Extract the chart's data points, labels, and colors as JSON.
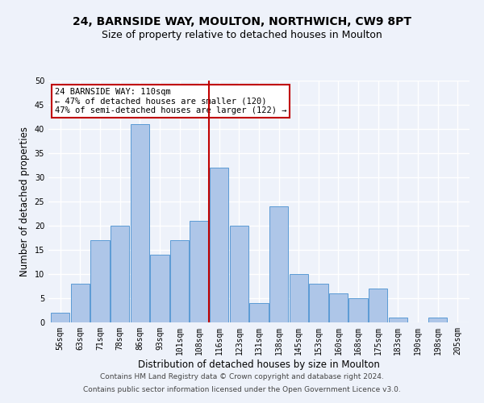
{
  "title_line1": "24, BARNSIDE WAY, MOULTON, NORTHWICH, CW9 8PT",
  "title_line2": "Size of property relative to detached houses in Moulton",
  "xlabel": "Distribution of detached houses by size in Moulton",
  "ylabel": "Number of detached properties",
  "footer_line1": "Contains HM Land Registry data © Crown copyright and database right 2024.",
  "footer_line2": "Contains public sector information licensed under the Open Government Licence v3.0.",
  "categories": [
    "56sqm",
    "63sqm",
    "71sqm",
    "78sqm",
    "86sqm",
    "93sqm",
    "101sqm",
    "108sqm",
    "116sqm",
    "123sqm",
    "131sqm",
    "138sqm",
    "145sqm",
    "153sqm",
    "160sqm",
    "168sqm",
    "175sqm",
    "183sqm",
    "190sqm",
    "198sqm",
    "205sqm"
  ],
  "values": [
    2,
    8,
    17,
    20,
    41,
    14,
    17,
    21,
    32,
    20,
    4,
    24,
    10,
    8,
    6,
    5,
    7,
    1,
    0,
    1,
    0
  ],
  "bar_color": "#aec6e8",
  "bar_edge_color": "#5b9bd5",
  "vline_x": 7.5,
  "vline_color": "#c00000",
  "annotation_line1": "24 BARNSIDE WAY: 110sqm",
  "annotation_line2": "← 47% of detached houses are smaller (120)",
  "annotation_line3": "47% of semi-detached houses are larger (122) →",
  "annotation_box_color": "#ffffff",
  "annotation_box_edge_color": "#c00000",
  "ylim": [
    0,
    50
  ],
  "yticks": [
    0,
    5,
    10,
    15,
    20,
    25,
    30,
    35,
    40,
    45,
    50
  ],
  "background_color": "#eef2fa",
  "grid_color": "#ffffff",
  "title_fontsize": 10,
  "subtitle_fontsize": 9,
  "axis_label_fontsize": 8.5,
  "tick_fontsize": 7,
  "annotation_fontsize": 7.5,
  "footer_fontsize": 6.5
}
